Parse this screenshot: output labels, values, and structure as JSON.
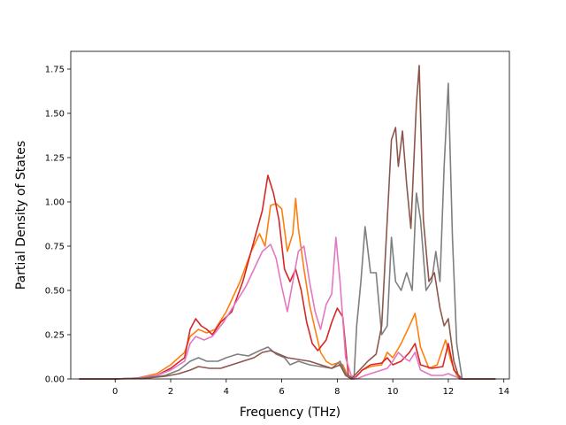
{
  "chart_data": {
    "type": "line",
    "title": "",
    "xlabel": "Frequency (THz)",
    "ylabel": "Partial Density of States",
    "xlim": [
      -1.6,
      14.2
    ],
    "ylim": [
      0,
      1.85
    ],
    "xticks": [
      0,
      2,
      4,
      6,
      8,
      10,
      12,
      14
    ],
    "yticks": [
      0.0,
      0.25,
      0.5,
      0.75,
      1.0,
      1.25,
      1.5,
      1.75
    ],
    "xtick_labels": [
      "0",
      "2",
      "4",
      "6",
      "8",
      "10",
      "12",
      "14"
    ],
    "ytick_labels": [
      "0.00",
      "0.25",
      "0.50",
      "0.75",
      "1.00",
      "1.25",
      "1.50",
      "1.75"
    ],
    "grid": false,
    "series": [
      {
        "color": "#ff7f0e",
        "points": [
          [
            -1.3,
            0
          ],
          [
            0,
            0
          ],
          [
            0.8,
            0.005
          ],
          [
            1.5,
            0.03
          ],
          [
            2.0,
            0.08
          ],
          [
            2.5,
            0.15
          ],
          [
            2.7,
            0.24
          ],
          [
            3.0,
            0.28
          ],
          [
            3.3,
            0.26
          ],
          [
            3.6,
            0.28
          ],
          [
            4.0,
            0.38
          ],
          [
            4.5,
            0.55
          ],
          [
            4.9,
            0.72
          ],
          [
            5.2,
            0.82
          ],
          [
            5.4,
            0.75
          ],
          [
            5.6,
            0.98
          ],
          [
            5.8,
            0.99
          ],
          [
            6.0,
            0.96
          ],
          [
            6.2,
            0.72
          ],
          [
            6.4,
            0.82
          ],
          [
            6.5,
            1.02
          ],
          [
            6.6,
            0.85
          ],
          [
            6.8,
            0.62
          ],
          [
            7.0,
            0.42
          ],
          [
            7.2,
            0.28
          ],
          [
            7.4,
            0.15
          ],
          [
            7.6,
            0.1
          ],
          [
            7.8,
            0.08
          ],
          [
            8.0,
            0.09
          ],
          [
            8.2,
            0.08
          ],
          [
            8.4,
            0.01
          ],
          [
            8.6,
            0.0
          ],
          [
            8.9,
            0.05
          ],
          [
            9.2,
            0.07
          ],
          [
            9.6,
            0.08
          ],
          [
            9.8,
            0.15
          ],
          [
            10.0,
            0.12
          ],
          [
            10.3,
            0.2
          ],
          [
            10.6,
            0.3
          ],
          [
            10.8,
            0.37
          ],
          [
            11.0,
            0.18
          ],
          [
            11.3,
            0.06
          ],
          [
            11.6,
            0.08
          ],
          [
            11.9,
            0.22
          ],
          [
            12.1,
            0.1
          ],
          [
            12.3,
            0.02
          ],
          [
            12.5,
            0
          ],
          [
            13.7,
            0
          ]
        ]
      },
      {
        "color": "#d62728",
        "points": [
          [
            -1.3,
            0
          ],
          [
            0,
            0
          ],
          [
            0.8,
            0.005
          ],
          [
            1.5,
            0.02
          ],
          [
            2.0,
            0.06
          ],
          [
            2.5,
            0.12
          ],
          [
            2.7,
            0.28
          ],
          [
            2.9,
            0.34
          ],
          [
            3.1,
            0.3
          ],
          [
            3.3,
            0.28
          ],
          [
            3.5,
            0.25
          ],
          [
            3.8,
            0.32
          ],
          [
            4.2,
            0.38
          ],
          [
            4.6,
            0.55
          ],
          [
            5.0,
            0.78
          ],
          [
            5.3,
            0.95
          ],
          [
            5.5,
            1.15
          ],
          [
            5.7,
            1.05
          ],
          [
            5.9,
            0.9
          ],
          [
            6.1,
            0.62
          ],
          [
            6.3,
            0.55
          ],
          [
            6.5,
            0.62
          ],
          [
            6.7,
            0.5
          ],
          [
            6.9,
            0.32
          ],
          [
            7.1,
            0.2
          ],
          [
            7.3,
            0.16
          ],
          [
            7.6,
            0.22
          ],
          [
            7.8,
            0.32
          ],
          [
            8.0,
            0.4
          ],
          [
            8.2,
            0.35
          ],
          [
            8.4,
            0.02
          ],
          [
            8.6,
            0.0
          ],
          [
            8.9,
            0.05
          ],
          [
            9.2,
            0.08
          ],
          [
            9.6,
            0.09
          ],
          [
            9.8,
            0.12
          ],
          [
            10.0,
            0.08
          ],
          [
            10.3,
            0.1
          ],
          [
            10.6,
            0.15
          ],
          [
            10.8,
            0.2
          ],
          [
            11.0,
            0.08
          ],
          [
            11.4,
            0.06
          ],
          [
            11.8,
            0.07
          ],
          [
            12.0,
            0.2
          ],
          [
            12.2,
            0.05
          ],
          [
            12.5,
            0
          ],
          [
            13.7,
            0
          ]
        ]
      },
      {
        "color": "#e377c2",
        "points": [
          [
            -1.3,
            0
          ],
          [
            0,
            0
          ],
          [
            0.8,
            0.005
          ],
          [
            1.5,
            0.02
          ],
          [
            2.0,
            0.05
          ],
          [
            2.5,
            0.1
          ],
          [
            2.7,
            0.2
          ],
          [
            2.9,
            0.24
          ],
          [
            3.2,
            0.22
          ],
          [
            3.5,
            0.24
          ],
          [
            3.9,
            0.32
          ],
          [
            4.3,
            0.42
          ],
          [
            4.7,
            0.52
          ],
          [
            5.0,
            0.62
          ],
          [
            5.3,
            0.72
          ],
          [
            5.6,
            0.76
          ],
          [
            5.8,
            0.68
          ],
          [
            6.0,
            0.52
          ],
          [
            6.2,
            0.38
          ],
          [
            6.4,
            0.55
          ],
          [
            6.6,
            0.72
          ],
          [
            6.8,
            0.75
          ],
          [
            7.0,
            0.55
          ],
          [
            7.2,
            0.38
          ],
          [
            7.4,
            0.28
          ],
          [
            7.6,
            0.42
          ],
          [
            7.8,
            0.48
          ],
          [
            7.95,
            0.8
          ],
          [
            8.1,
            0.55
          ],
          [
            8.3,
            0.12
          ],
          [
            8.5,
            0.02
          ],
          [
            8.7,
            0.0
          ],
          [
            9.0,
            0.02
          ],
          [
            9.4,
            0.04
          ],
          [
            9.8,
            0.06
          ],
          [
            10.0,
            0.1
          ],
          [
            10.2,
            0.15
          ],
          [
            10.4,
            0.12
          ],
          [
            10.6,
            0.1
          ],
          [
            10.8,
            0.15
          ],
          [
            11.0,
            0.05
          ],
          [
            11.4,
            0.02
          ],
          [
            11.8,
            0.02
          ],
          [
            12.0,
            0.03
          ],
          [
            12.3,
            0.01
          ],
          [
            12.5,
            0
          ],
          [
            13.7,
            0
          ]
        ]
      },
      {
        "color": "#7f7f7f",
        "points": [
          [
            -1.3,
            0
          ],
          [
            0,
            0
          ],
          [
            1.0,
            0.005
          ],
          [
            1.8,
            0.02
          ],
          [
            2.3,
            0.05
          ],
          [
            2.7,
            0.1
          ],
          [
            3.0,
            0.12
          ],
          [
            3.3,
            0.1
          ],
          [
            3.7,
            0.1
          ],
          [
            4.0,
            0.12
          ],
          [
            4.4,
            0.14
          ],
          [
            4.8,
            0.13
          ],
          [
            5.2,
            0.16
          ],
          [
            5.5,
            0.18
          ],
          [
            5.8,
            0.14
          ],
          [
            6.1,
            0.12
          ],
          [
            6.3,
            0.08
          ],
          [
            6.6,
            0.1
          ],
          [
            7.0,
            0.08
          ],
          [
            7.4,
            0.07
          ],
          [
            7.8,
            0.06
          ],
          [
            8.1,
            0.1
          ],
          [
            8.3,
            0.03
          ],
          [
            8.5,
            0.0
          ],
          [
            8.6,
            0.0
          ],
          [
            8.7,
            0.3
          ],
          [
            8.85,
            0.55
          ],
          [
            9.0,
            0.86
          ],
          [
            9.2,
            0.6
          ],
          [
            9.4,
            0.6
          ],
          [
            9.6,
            0.25
          ],
          [
            9.8,
            0.3
          ],
          [
            9.95,
            0.8
          ],
          [
            10.1,
            0.55
          ],
          [
            10.3,
            0.5
          ],
          [
            10.5,
            0.6
          ],
          [
            10.7,
            0.5
          ],
          [
            10.85,
            1.05
          ],
          [
            11.0,
            0.9
          ],
          [
            11.2,
            0.5
          ],
          [
            11.4,
            0.55
          ],
          [
            11.55,
            0.72
          ],
          [
            11.7,
            0.55
          ],
          [
            11.85,
            1.2
          ],
          [
            12.0,
            1.67
          ],
          [
            12.15,
            0.8
          ],
          [
            12.3,
            0.2
          ],
          [
            12.5,
            0.0
          ],
          [
            13.7,
            0
          ]
        ]
      },
      {
        "color": "#8c564b",
        "points": [
          [
            -1.3,
            0
          ],
          [
            0,
            0
          ],
          [
            1.0,
            0.003
          ],
          [
            1.8,
            0.015
          ],
          [
            2.3,
            0.03
          ],
          [
            2.7,
            0.05
          ],
          [
            3.0,
            0.07
          ],
          [
            3.4,
            0.06
          ],
          [
            3.8,
            0.06
          ],
          [
            4.2,
            0.08
          ],
          [
            4.6,
            0.1
          ],
          [
            5.0,
            0.12
          ],
          [
            5.3,
            0.15
          ],
          [
            5.6,
            0.16
          ],
          [
            5.9,
            0.14
          ],
          [
            6.2,
            0.12
          ],
          [
            6.6,
            0.11
          ],
          [
            7.0,
            0.1
          ],
          [
            7.4,
            0.08
          ],
          [
            7.8,
            0.06
          ],
          [
            8.1,
            0.08
          ],
          [
            8.3,
            0.02
          ],
          [
            8.5,
            0.0
          ],
          [
            8.8,
            0.05
          ],
          [
            9.1,
            0.1
          ],
          [
            9.4,
            0.14
          ],
          [
            9.6,
            0.3
          ],
          [
            9.8,
            0.9
          ],
          [
            9.95,
            1.35
          ],
          [
            10.1,
            1.42
          ],
          [
            10.2,
            1.2
          ],
          [
            10.35,
            1.4
          ],
          [
            10.5,
            1.1
          ],
          [
            10.65,
            0.85
          ],
          [
            10.85,
            1.55
          ],
          [
            10.95,
            1.77
          ],
          [
            11.1,
            0.9
          ],
          [
            11.3,
            0.55
          ],
          [
            11.5,
            0.6
          ],
          [
            11.7,
            0.4
          ],
          [
            11.85,
            0.3
          ],
          [
            12.0,
            0.34
          ],
          [
            12.2,
            0.1
          ],
          [
            12.4,
            0.0
          ],
          [
            13.7,
            0
          ]
        ]
      }
    ]
  }
}
